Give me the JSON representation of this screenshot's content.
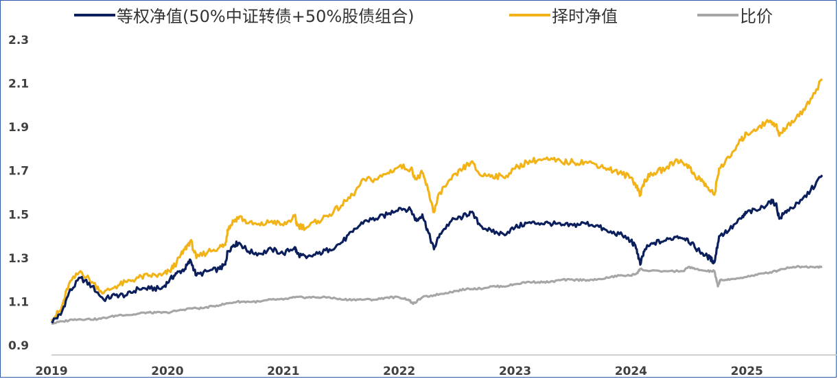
{
  "chart_data": {
    "type": "line",
    "title": "",
    "xlabel": "",
    "ylabel": "",
    "ylim": [
      0.9,
      2.3
    ],
    "yticks": [
      "0.9",
      "1.1",
      "1.3",
      "1.5",
      "1.7",
      "1.9",
      "2.1",
      "2.3"
    ],
    "xlim": [
      2019.0,
      2025.65
    ],
    "xticks": [
      "2019",
      "2020",
      "2021",
      "2022",
      "2023",
      "2024",
      "2025"
    ],
    "grid": false,
    "legend_position": "top",
    "series": [
      {
        "name": "等权净值(50%中证转债+50%股债组合)",
        "color": "#0a1f5c",
        "points": [
          [
            2019.0,
            1.01
          ],
          [
            2019.08,
            1.04
          ],
          [
            2019.15,
            1.14
          ],
          [
            2019.25,
            1.21
          ],
          [
            2019.35,
            1.17
          ],
          [
            2019.45,
            1.11
          ],
          [
            2019.55,
            1.13
          ],
          [
            2019.65,
            1.13
          ],
          [
            2019.75,
            1.16
          ],
          [
            2019.85,
            1.16
          ],
          [
            2019.95,
            1.16
          ],
          [
            2020.02,
            1.2
          ],
          [
            2020.08,
            1.23
          ],
          [
            2020.15,
            1.25
          ],
          [
            2020.2,
            1.29
          ],
          [
            2020.25,
            1.22
          ],
          [
            2020.35,
            1.24
          ],
          [
            2020.45,
            1.25
          ],
          [
            2020.5,
            1.27
          ],
          [
            2020.52,
            1.33
          ],
          [
            2020.57,
            1.36
          ],
          [
            2020.62,
            1.37
          ],
          [
            2020.7,
            1.33
          ],
          [
            2020.8,
            1.32
          ],
          [
            2020.9,
            1.34
          ],
          [
            2021.0,
            1.32
          ],
          [
            2021.1,
            1.35
          ],
          [
            2021.12,
            1.32
          ],
          [
            2021.2,
            1.3
          ],
          [
            2021.3,
            1.32
          ],
          [
            2021.4,
            1.34
          ],
          [
            2021.5,
            1.37
          ],
          [
            2021.6,
            1.42
          ],
          [
            2021.7,
            1.47
          ],
          [
            2021.8,
            1.48
          ],
          [
            2021.9,
            1.5
          ],
          [
            2022.0,
            1.53
          ],
          [
            2022.1,
            1.52
          ],
          [
            2022.15,
            1.47
          ],
          [
            2022.2,
            1.5
          ],
          [
            2022.25,
            1.42
          ],
          [
            2022.3,
            1.34
          ],
          [
            2022.35,
            1.41
          ],
          [
            2022.45,
            1.47
          ],
          [
            2022.55,
            1.49
          ],
          [
            2022.62,
            1.51
          ],
          [
            2022.7,
            1.45
          ],
          [
            2022.8,
            1.42
          ],
          [
            2022.9,
            1.41
          ],
          [
            2023.0,
            1.44
          ],
          [
            2023.1,
            1.46
          ],
          [
            2023.2,
            1.46
          ],
          [
            2023.3,
            1.46
          ],
          [
            2023.4,
            1.45
          ],
          [
            2023.5,
            1.45
          ],
          [
            2023.6,
            1.46
          ],
          [
            2023.7,
            1.45
          ],
          [
            2023.8,
            1.42
          ],
          [
            2023.9,
            1.41
          ],
          [
            2024.0,
            1.38
          ],
          [
            2024.05,
            1.34
          ],
          [
            2024.08,
            1.27
          ],
          [
            2024.12,
            1.34
          ],
          [
            2024.2,
            1.37
          ],
          [
            2024.3,
            1.38
          ],
          [
            2024.4,
            1.4
          ],
          [
            2024.48,
            1.39
          ],
          [
            2024.55,
            1.35
          ],
          [
            2024.62,
            1.32
          ],
          [
            2024.68,
            1.3
          ],
          [
            2024.72,
            1.28
          ],
          [
            2024.76,
            1.4
          ],
          [
            2024.85,
            1.43
          ],
          [
            2024.95,
            1.48
          ],
          [
            2025.0,
            1.51
          ],
          [
            2025.1,
            1.52
          ],
          [
            2025.2,
            1.56
          ],
          [
            2025.25,
            1.55
          ],
          [
            2025.28,
            1.48
          ],
          [
            2025.35,
            1.52
          ],
          [
            2025.45,
            1.55
          ],
          [
            2025.55,
            1.61
          ],
          [
            2025.65,
            1.68
          ]
        ]
      },
      {
        "name": "择时净值",
        "color": "#f2b318",
        "points": [
          [
            2019.0,
            1.02
          ],
          [
            2019.08,
            1.06
          ],
          [
            2019.15,
            1.18
          ],
          [
            2019.25,
            1.24
          ],
          [
            2019.35,
            1.19
          ],
          [
            2019.45,
            1.14
          ],
          [
            2019.55,
            1.17
          ],
          [
            2019.65,
            1.19
          ],
          [
            2019.75,
            1.21
          ],
          [
            2019.85,
            1.22
          ],
          [
            2019.95,
            1.22
          ],
          [
            2020.02,
            1.24
          ],
          [
            2020.08,
            1.28
          ],
          [
            2020.15,
            1.34
          ],
          [
            2020.2,
            1.38
          ],
          [
            2020.25,
            1.3
          ],
          [
            2020.35,
            1.33
          ],
          [
            2020.45,
            1.35
          ],
          [
            2020.5,
            1.36
          ],
          [
            2020.52,
            1.43
          ],
          [
            2020.57,
            1.47
          ],
          [
            2020.62,
            1.49
          ],
          [
            2020.7,
            1.46
          ],
          [
            2020.8,
            1.45
          ],
          [
            2020.9,
            1.47
          ],
          [
            2021.0,
            1.45
          ],
          [
            2021.1,
            1.49
          ],
          [
            2021.12,
            1.45
          ],
          [
            2021.2,
            1.44
          ],
          [
            2021.3,
            1.47
          ],
          [
            2021.4,
            1.5
          ],
          [
            2021.5,
            1.54
          ],
          [
            2021.6,
            1.59
          ],
          [
            2021.7,
            1.66
          ],
          [
            2021.8,
            1.66
          ],
          [
            2021.9,
            1.69
          ],
          [
            2022.0,
            1.72
          ],
          [
            2022.1,
            1.71
          ],
          [
            2022.15,
            1.66
          ],
          [
            2022.2,
            1.69
          ],
          [
            2022.25,
            1.61
          ],
          [
            2022.3,
            1.51
          ],
          [
            2022.35,
            1.6
          ],
          [
            2022.45,
            1.66
          ],
          [
            2022.55,
            1.71
          ],
          [
            2022.62,
            1.74
          ],
          [
            2022.7,
            1.68
          ],
          [
            2022.8,
            1.68
          ],
          [
            2022.9,
            1.67
          ],
          [
            2023.0,
            1.71
          ],
          [
            2023.1,
            1.74
          ],
          [
            2023.2,
            1.75
          ],
          [
            2023.3,
            1.75
          ],
          [
            2023.4,
            1.74
          ],
          [
            2023.5,
            1.74
          ],
          [
            2023.6,
            1.74
          ],
          [
            2023.7,
            1.73
          ],
          [
            2023.8,
            1.71
          ],
          [
            2023.9,
            1.69
          ],
          [
            2024.0,
            1.67
          ],
          [
            2024.05,
            1.63
          ],
          [
            2024.08,
            1.59
          ],
          [
            2024.12,
            1.66
          ],
          [
            2024.2,
            1.69
          ],
          [
            2024.3,
            1.71
          ],
          [
            2024.4,
            1.75
          ],
          [
            2024.48,
            1.73
          ],
          [
            2024.55,
            1.68
          ],
          [
            2024.62,
            1.65
          ],
          [
            2024.68,
            1.61
          ],
          [
            2024.72,
            1.59
          ],
          [
            2024.76,
            1.71
          ],
          [
            2024.85,
            1.76
          ],
          [
            2024.95,
            1.84
          ],
          [
            2025.0,
            1.87
          ],
          [
            2025.1,
            1.9
          ],
          [
            2025.2,
            1.93
          ],
          [
            2025.25,
            1.91
          ],
          [
            2025.28,
            1.86
          ],
          [
            2025.35,
            1.91
          ],
          [
            2025.45,
            1.95
          ],
          [
            2025.55,
            2.03
          ],
          [
            2025.65,
            2.12
          ]
        ]
      },
      {
        "name": "比价",
        "color": "#a6a6a6",
        "points": [
          [
            2019.0,
            1.0
          ],
          [
            2019.1,
            1.01
          ],
          [
            2019.2,
            1.02
          ],
          [
            2019.3,
            1.02
          ],
          [
            2019.4,
            1.02
          ],
          [
            2019.5,
            1.03
          ],
          [
            2019.6,
            1.04
          ],
          [
            2019.7,
            1.04
          ],
          [
            2019.8,
            1.05
          ],
          [
            2019.9,
            1.05
          ],
          [
            2020.0,
            1.05
          ],
          [
            2020.1,
            1.06
          ],
          [
            2020.2,
            1.07
          ],
          [
            2020.3,
            1.07
          ],
          [
            2020.4,
            1.08
          ],
          [
            2020.5,
            1.09
          ],
          [
            2020.6,
            1.1
          ],
          [
            2020.7,
            1.1
          ],
          [
            2020.8,
            1.1
          ],
          [
            2020.9,
            1.11
          ],
          [
            2021.0,
            1.11
          ],
          [
            2021.1,
            1.12
          ],
          [
            2021.2,
            1.12
          ],
          [
            2021.3,
            1.12
          ],
          [
            2021.4,
            1.12
          ],
          [
            2021.5,
            1.11
          ],
          [
            2021.6,
            1.11
          ],
          [
            2021.7,
            1.11
          ],
          [
            2021.8,
            1.11
          ],
          [
            2021.9,
            1.12
          ],
          [
            2022.0,
            1.12
          ],
          [
            2022.08,
            1.11
          ],
          [
            2022.12,
            1.09
          ],
          [
            2022.2,
            1.12
          ],
          [
            2022.3,
            1.13
          ],
          [
            2022.4,
            1.14
          ],
          [
            2022.5,
            1.15
          ],
          [
            2022.6,
            1.16
          ],
          [
            2022.7,
            1.16
          ],
          [
            2022.8,
            1.17
          ],
          [
            2022.9,
            1.17
          ],
          [
            2023.0,
            1.18
          ],
          [
            2023.1,
            1.19
          ],
          [
            2023.2,
            1.19
          ],
          [
            2023.3,
            1.19
          ],
          [
            2023.4,
            1.2
          ],
          [
            2023.5,
            1.2
          ],
          [
            2023.6,
            1.2
          ],
          [
            2023.7,
            1.2
          ],
          [
            2023.8,
            1.21
          ],
          [
            2023.9,
            1.22
          ],
          [
            2024.0,
            1.22
          ],
          [
            2024.05,
            1.23
          ],
          [
            2024.08,
            1.25
          ],
          [
            2024.15,
            1.24
          ],
          [
            2024.3,
            1.24
          ],
          [
            2024.45,
            1.24
          ],
          [
            2024.5,
            1.26
          ],
          [
            2024.55,
            1.25
          ],
          [
            2024.65,
            1.24
          ],
          [
            2024.72,
            1.24
          ],
          [
            2024.75,
            1.17
          ],
          [
            2024.77,
            1.2
          ],
          [
            2024.85,
            1.2
          ],
          [
            2024.95,
            1.21
          ],
          [
            2025.05,
            1.22
          ],
          [
            2025.15,
            1.23
          ],
          [
            2025.25,
            1.24
          ],
          [
            2025.3,
            1.25
          ],
          [
            2025.4,
            1.26
          ],
          [
            2025.5,
            1.26
          ],
          [
            2025.6,
            1.26
          ],
          [
            2025.65,
            1.26
          ]
        ]
      }
    ]
  }
}
